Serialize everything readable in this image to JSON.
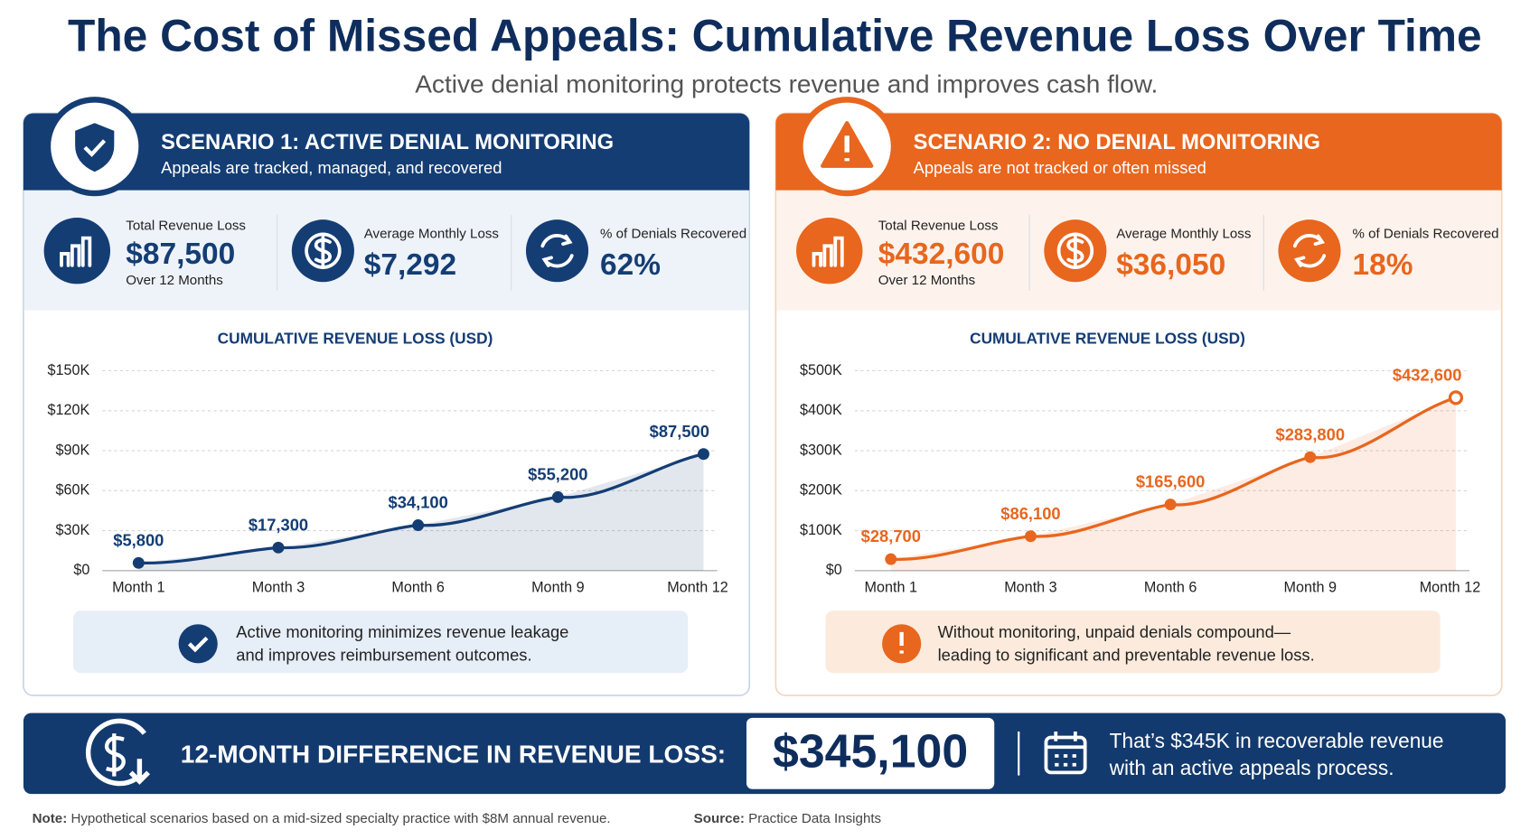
{
  "header": {
    "title": "The Cost of Missed Appeals: Cumulative Revenue Loss Over Time",
    "subtitle": "Active denial monitoring protects revenue and improves cash flow."
  },
  "panels": [
    {
      "heading": "SCENARIO 1: ACTIVE DENIAL MONITORING",
      "subheading": "Appeals are tracked, managed, and recovered",
      "kpis": [
        {
          "label": "Total Revenue Loss",
          "value": "$87,500",
          "sub": "Over 12 Months"
        },
        {
          "label": "Average Monthly Loss",
          "value": "$7,292"
        },
        {
          "label": "% of Denials Recovered",
          "value": "62%"
        }
      ],
      "note": [
        "Active monitoring minimizes revenue leakage",
        "and improves reimbursement outcomes."
      ]
    },
    {
      "heading": "SCENARIO 2: NO DENIAL MONITORING",
      "subheading": "Appeals are not tracked or often missed",
      "kpis": [
        {
          "label": "Total Revenue Loss",
          "value": "$432,600",
          "sub": "Over 12 Months"
        },
        {
          "label": "Average Monthly Loss",
          "value": "$36,050"
        },
        {
          "label": "% of Denials Recovered",
          "value": "18%"
        }
      ],
      "note": [
        "Without monitoring, unpaid denials compound—",
        "leading to significant and preventable revenue loss."
      ]
    }
  ],
  "chart_data": [
    {
      "type": "line",
      "title": "CUMULATIVE REVENUE LOSS (USD)",
      "categories": [
        "Month 1",
        "Month 3",
        "Month 6",
        "Month 9",
        "Month 12"
      ],
      "values": [
        5800,
        17300,
        34100,
        55200,
        87500
      ],
      "value_labels": [
        "$5,800",
        "$17,300",
        "$34,100",
        "$55,200",
        "$87,500"
      ],
      "color": "#143d74",
      "ylim": [
        0,
        150000
      ],
      "yticks": [
        {
          "value": 0,
          "label": "$0"
        },
        {
          "value": 30000,
          "label": "$30K"
        },
        {
          "value": 60000,
          "label": "$60K"
        },
        {
          "value": 90000,
          "label": "$90K"
        },
        {
          "value": 120000,
          "label": "$120K"
        },
        {
          "value": 150000,
          "label": "$150K"
        }
      ],
      "grid": true
    },
    {
      "type": "line",
      "title": "CUMULATIVE REVENUE LOSS (USD)",
      "categories": [
        "Month 1",
        "Month 3",
        "Month 6",
        "Month 9",
        "Month 12"
      ],
      "values": [
        28700,
        86100,
        165600,
        283800,
        432600
      ],
      "value_labels": [
        "$28,700",
        "$86,100",
        "$165,600",
        "$283,800",
        "$432,600"
      ],
      "color": "#e8661e",
      "ylim": [
        0,
        500000
      ],
      "yticks": [
        {
          "value": 0,
          "label": "$0"
        },
        {
          "value": 100000,
          "label": "$100K"
        },
        {
          "value": 200000,
          "label": "$200K"
        },
        {
          "value": 300000,
          "label": "$300K"
        },
        {
          "value": 400000,
          "label": "$400K"
        },
        {
          "value": 500000,
          "label": "$500K"
        }
      ],
      "grid": true
    }
  ],
  "banner": {
    "label": "12-MONTH DIFFERENCE IN REVENUE LOSS:",
    "value": "$345,100",
    "text": [
      "That’s $345K in recoverable revenue",
      "with an active appeals process."
    ]
  },
  "footer": {
    "note_label": "Note:",
    "note": "Hypothetical scenarios based on a mid-sized specialty practice with $8M annual revenue.",
    "source_label": "Source:",
    "source": "Practice Data Insights"
  }
}
